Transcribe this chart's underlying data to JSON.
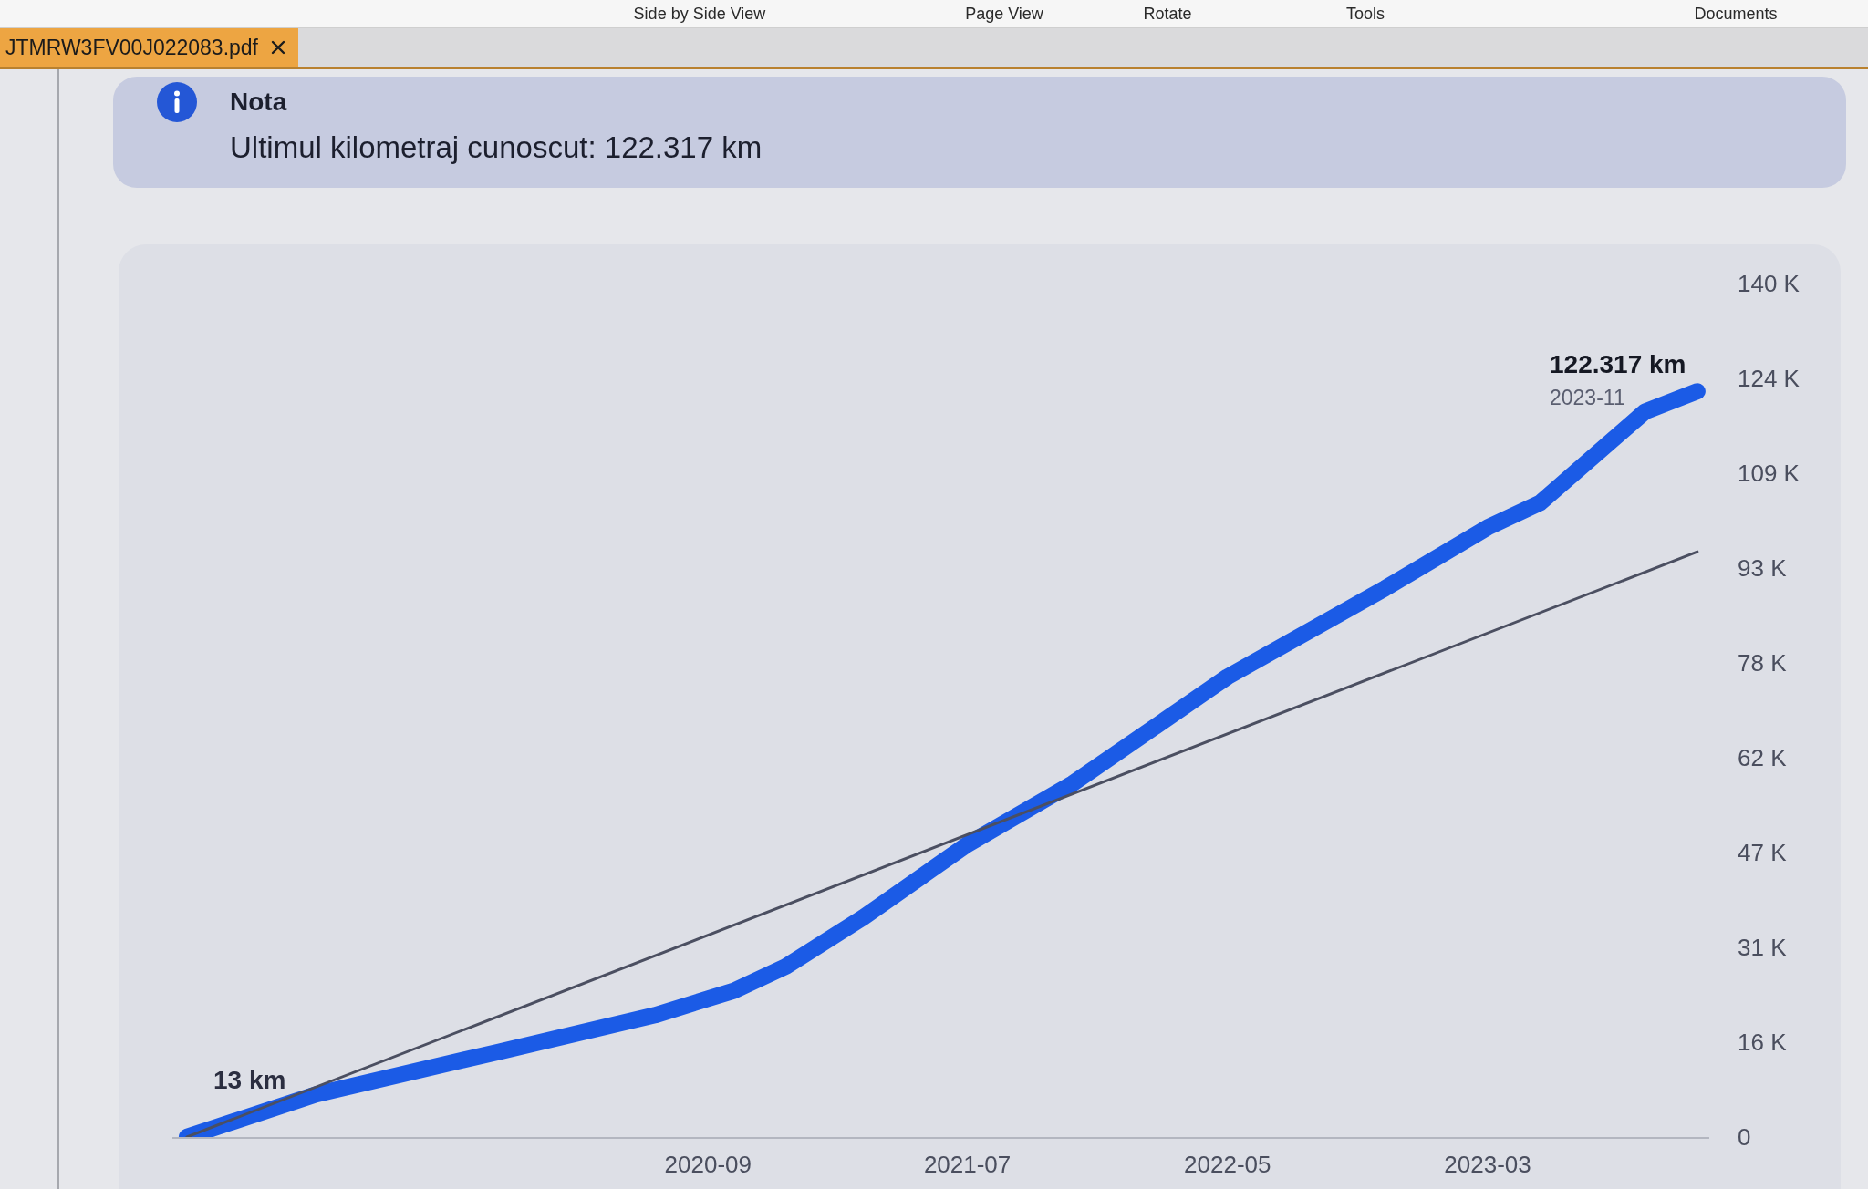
{
  "chart_data": {
    "type": "line",
    "title": "Nota",
    "subtitle": "Ultimul kilometraj cunoscut: 122.317 km",
    "annotations": [
      "JTMRW3FV00J022083.pdf",
      "Side by Side View",
      "Page View",
      "Rotate",
      "Tools",
      "Documents",
      "2023-11"
    ],
    "xlim": [
      "2018-12-15",
      "2023-11-15"
    ],
    "xticks": [
      "2020-09",
      "2021-07",
      "2022-05",
      "2023-03"
    ],
    "ylim": [
      0,
      140000
    ],
    "yticks": [
      0,
      {
        "value": 15556,
        "label": "16 K"
      },
      {
        "value": 31111,
        "label": "31 K"
      },
      {
        "value": 46667,
        "label": "47 K"
      },
      {
        "value": 62222,
        "label": "62 K"
      },
      {
        "value": 77778,
        "label": "78 K"
      },
      {
        "value": 93333,
        "label": "93 K"
      },
      {
        "value": 108889,
        "label": "109 K"
      },
      {
        "value": 124444,
        "label": "124 K"
      },
      {
        "value": 140000,
        "label": "140 K"
      }
    ],
    "series": [
      {
        "color": "#1b5be6",
        "x": [
          "2019-01",
          "2019-06",
          "2020-01",
          "2020-07",
          "2020-10",
          "2020-12",
          "2021-03",
          "2021-07",
          "2021-11",
          "2022-05",
          "2022-11",
          "2023-03",
          "2023-05",
          "2023-09",
          "2023-11"
        ],
        "values": [
          13,
          7000,
          14000,
          20000,
          24000,
          28000,
          36000,
          48000,
          58000,
          75500,
          90000,
          100000,
          104000,
          119000,
          122317
        ],
        "value_labels": [
          "13 km",
          null,
          null,
          null,
          null,
          null,
          null,
          null,
          null,
          null,
          null,
          null,
          null,
          null,
          "122.317 km"
        ]
      },
      {
        "color": "#4b4f61",
        "x": [
          "2019-01",
          "2023-11"
        ],
        "values": [
          0,
          96000
        ]
      }
    ]
  }
}
